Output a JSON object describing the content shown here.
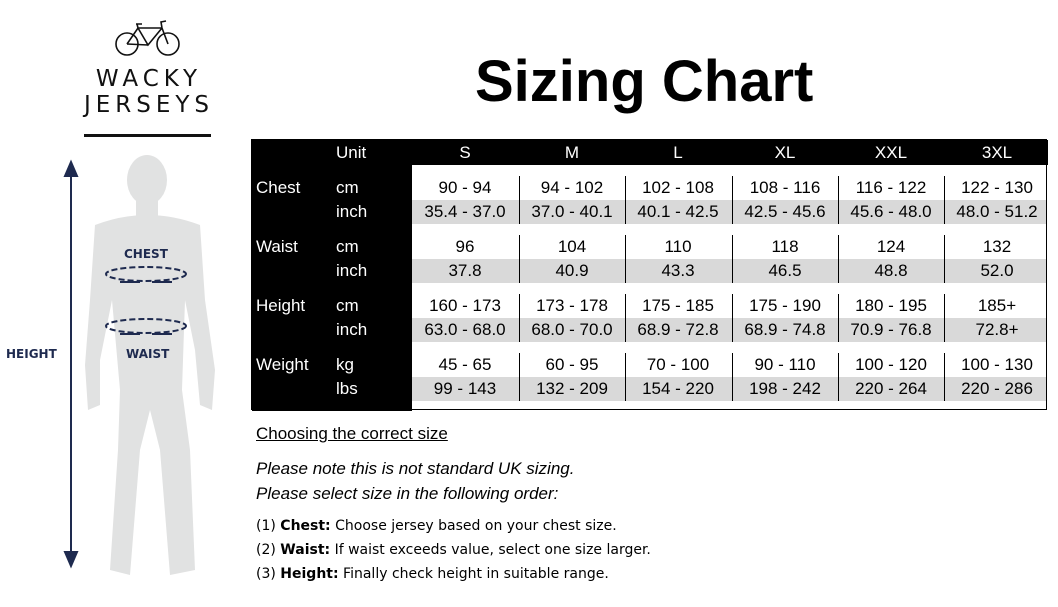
{
  "brand": {
    "line1": "WACKY",
    "line2": "JERSEYS"
  },
  "title": "Sizing Chart",
  "figure": {
    "height_label": "HEIGHT",
    "chest_label": "CHEST",
    "waist_label": "WAIST",
    "accent_color": "#1e2a4f",
    "silhouette_color": "#e1e2e2"
  },
  "table": {
    "unit_header": "Unit",
    "sizes": [
      "S",
      "M",
      "L",
      "XL",
      "XXL",
      "3XL"
    ],
    "groups": [
      {
        "label": "Chest",
        "rows": [
          {
            "unit": "cm",
            "values": [
              "90 - 94",
              "94 - 102",
              "102 - 108",
              "108 - 116",
              "116 - 122",
              "122 - 130"
            ]
          },
          {
            "unit": "inch",
            "values": [
              "35.4 - 37.0",
              "37.0 - 40.1",
              "40.1 - 42.5",
              "42.5 - 45.6",
              "45.6 - 48.0",
              "48.0 - 51.2"
            ]
          }
        ]
      },
      {
        "label": "Waist",
        "rows": [
          {
            "unit": "cm",
            "values": [
              "96",
              "104",
              "110",
              "118",
              "124",
              "132"
            ]
          },
          {
            "unit": "inch",
            "values": [
              "37.8",
              "40.9",
              "43.3",
              "46.5",
              "48.8",
              "52.0"
            ]
          }
        ]
      },
      {
        "label": "Height",
        "rows": [
          {
            "unit": "cm",
            "values": [
              "160 - 173",
              "173 - 178",
              "175 - 185",
              "175 - 190",
              "180 - 195",
              "185+"
            ]
          },
          {
            "unit": "inch",
            "values": [
              "63.0 - 68.0",
              "68.0 - 70.0",
              "68.9 - 72.8",
              "68.9 - 74.8",
              "70.9 - 76.8",
              "72.8+"
            ]
          }
        ]
      },
      {
        "label": "Weight",
        "rows": [
          {
            "unit": "kg",
            "values": [
              "45 - 65",
              "60 - 95",
              "70 - 100",
              "90 - 110",
              "100 - 120",
              "100 - 130"
            ]
          },
          {
            "unit": "lbs",
            "values": [
              "99 - 143",
              "132 - 209",
              "154 - 220",
              "198 - 242",
              "220 - 264",
              "220 - 286"
            ]
          }
        ]
      }
    ]
  },
  "guide": {
    "heading": "Choosing the correct size",
    "note1": "Please note this is not standard UK sizing.",
    "note2": "Please select size in the following order:",
    "steps": [
      {
        "num": "(1)",
        "key": "Chest:",
        "text": "Choose jersey based on your chest size."
      },
      {
        "num": "(2)",
        "key": "Waist:",
        "text": "If waist exceeds value, select one size larger."
      },
      {
        "num": "(3)",
        "key": "Height:",
        "text": "Finally check height in suitable range."
      }
    ]
  }
}
